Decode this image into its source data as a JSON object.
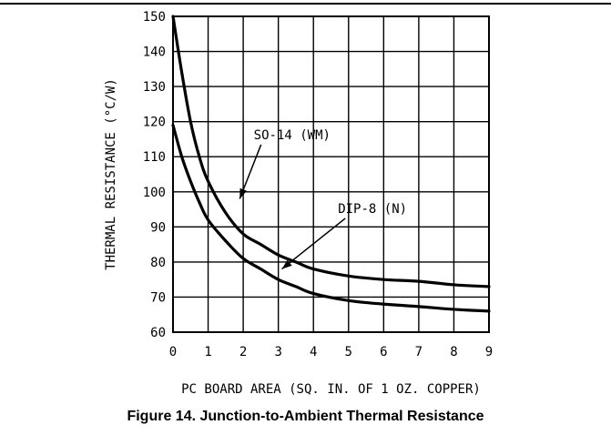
{
  "caption": "Figure 14. Junction-to-Ambient Thermal Resistance",
  "chart_data": {
    "type": "line",
    "xlabel": "PC BOARD AREA (SQ. IN. OF 1 OZ. COPPER)",
    "ylabel": "THERMAL RESISTANCE (°C/W)",
    "xlim": [
      0,
      9
    ],
    "ylim": [
      60,
      150
    ],
    "xticks": [
      0,
      1,
      2,
      3,
      4,
      5,
      6,
      7,
      8,
      9
    ],
    "yticks": [
      60,
      70,
      80,
      90,
      100,
      110,
      120,
      130,
      140,
      150
    ],
    "grid": true,
    "colors": {
      "line": "#000000",
      "grid": "#000000"
    },
    "series": [
      {
        "name": "SO-14 (WM)",
        "x": [
          0,
          0.25,
          0.5,
          0.75,
          1,
          1.5,
          2,
          2.5,
          3,
          3.5,
          4,
          5,
          6,
          7,
          8,
          9
        ],
        "y": [
          150,
          134,
          120,
          110,
          103,
          94,
          88,
          85,
          82,
          80,
          78,
          76,
          75,
          74.5,
          73.5,
          73
        ]
      },
      {
        "name": "DIP-8 (N)",
        "x": [
          0,
          0.25,
          0.5,
          0.75,
          1,
          1.5,
          2,
          2.5,
          3,
          3.5,
          4,
          5,
          6,
          7,
          8,
          9
        ],
        "y": [
          119,
          110,
          103,
          97,
          92,
          86,
          81,
          78,
          75,
          73,
          71,
          69,
          68,
          67.3,
          66.5,
          66
        ]
      }
    ],
    "annotations": [
      {
        "text": "SO-14 (WM)",
        "series": "SO-14 (WM)",
        "x": 2.3,
        "y": 115,
        "pointer_x": 1.9,
        "pointer_y": 98
      },
      {
        "text": "DIP-8 (N)",
        "series": "DIP-8 (N)",
        "x": 4.7,
        "y": 94,
        "pointer_x": 3.1,
        "pointer_y": 78
      }
    ]
  }
}
